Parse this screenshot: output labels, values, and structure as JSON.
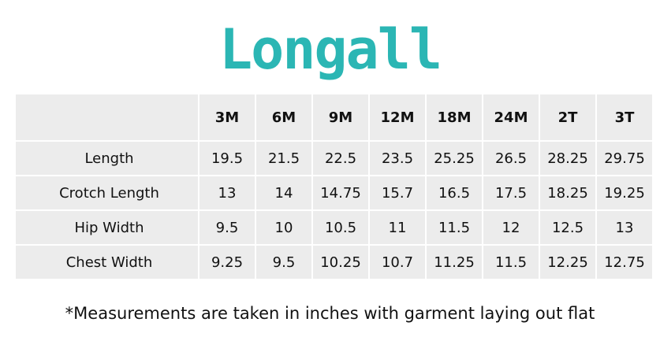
{
  "header": {
    "title": "Longall"
  },
  "table": {
    "columns": [
      "",
      "3M",
      "6M",
      "9M",
      "12M",
      "18M",
      "24M",
      "2T",
      "3T"
    ],
    "rows": [
      [
        "Length",
        "19.5",
        "21.5",
        "22.5",
        "23.5",
        "25.25",
        "26.5",
        "28.25",
        "29.75"
      ],
      [
        "Crotch Length",
        "13",
        "14",
        "14.75",
        "15.7",
        "16.5",
        "17.5",
        "18.25",
        "19.25"
      ],
      [
        "Hip Width",
        "9.5",
        "10",
        "10.5",
        "11",
        "11.5",
        "12",
        "12.5",
        "13"
      ],
      [
        "Chest Width",
        "9.25",
        "9.5",
        "10.25",
        "10.7",
        "11.25",
        "11.5",
        "12.25",
        "12.75"
      ]
    ]
  },
  "footnote": "*Measurements are taken in inches with garment laying out flat"
}
